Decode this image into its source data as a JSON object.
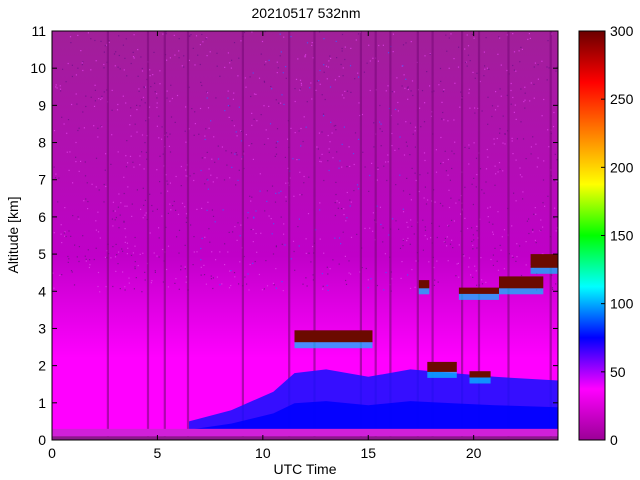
{
  "chart_data": {
    "type": "heatmap",
    "title": "20210517 532nm",
    "xlabel": "UTC Time",
    "ylabel": "Altitude [km]",
    "xlim": [
      0,
      24
    ],
    "ylim": [
      0,
      11
    ],
    "xticks": [
      0,
      5,
      10,
      15,
      20
    ],
    "yticks": [
      0,
      1,
      2,
      3,
      4,
      5,
      6,
      7,
      8,
      9,
      10,
      11
    ],
    "colorbar": {
      "range": [
        0,
        300
      ],
      "ticks": [
        0,
        50,
        100,
        150,
        200,
        250,
        300
      ],
      "colormap": [
        "#9a0096",
        "#ff00ff",
        "#0000ff",
        "#00ffff",
        "#00ff00",
        "#ffff00",
        "#ff8000",
        "#ff0000",
        "#6b0000"
      ]
    },
    "background_colors": {
      "low": "#a02098",
      "mid": "#c000c8",
      "high": "#ff00ff"
    },
    "cloud_layers": [
      {
        "t_start": 11.5,
        "t_end": 15.2,
        "alt_base": 2.55,
        "alt_top": 2.95,
        "value": 300
      },
      {
        "t_start": 17.4,
        "t_end": 17.9,
        "alt_base": 4.0,
        "alt_top": 4.3,
        "value": 300
      },
      {
        "t_start": 19.3,
        "t_end": 21.2,
        "alt_base": 3.85,
        "alt_top": 4.1,
        "value": 300
      },
      {
        "t_start": 21.2,
        "t_end": 23.3,
        "alt_base": 4.0,
        "alt_top": 4.4,
        "value": 300
      },
      {
        "t_start": 22.7,
        "t_end": 24.0,
        "alt_base": 4.55,
        "alt_top": 5.0,
        "value": 300
      },
      {
        "t_start": 17.8,
        "t_end": 19.2,
        "alt_base": 1.75,
        "alt_top": 2.1,
        "value": 300
      },
      {
        "t_start": 19.8,
        "t_end": 20.8,
        "alt_base": 1.6,
        "alt_top": 1.85,
        "value": 280
      }
    ],
    "boundary_layer": [
      {
        "t": 6.5,
        "top": 0.5
      },
      {
        "t": 8.5,
        "top": 0.8
      },
      {
        "t": 10.5,
        "top": 1.3
      },
      {
        "t": 11.5,
        "top": 1.8
      },
      {
        "t": 13.0,
        "top": 1.9
      },
      {
        "t": 15.0,
        "top": 1.7
      },
      {
        "t": 17.0,
        "top": 1.9
      },
      {
        "t": 19.0,
        "top": 1.8
      },
      {
        "t": 21.0,
        "top": 1.7
      },
      {
        "t": 24.0,
        "top": 1.6
      }
    ],
    "dark_stripes_t": [
      2.6,
      4.5,
      5.3,
      6.4,
      9.0,
      11.2,
      12.4,
      14.6,
      15.3,
      16.0,
      17.3,
      18.0,
      19.4,
      20.2,
      21.6,
      23.6
    ]
  }
}
